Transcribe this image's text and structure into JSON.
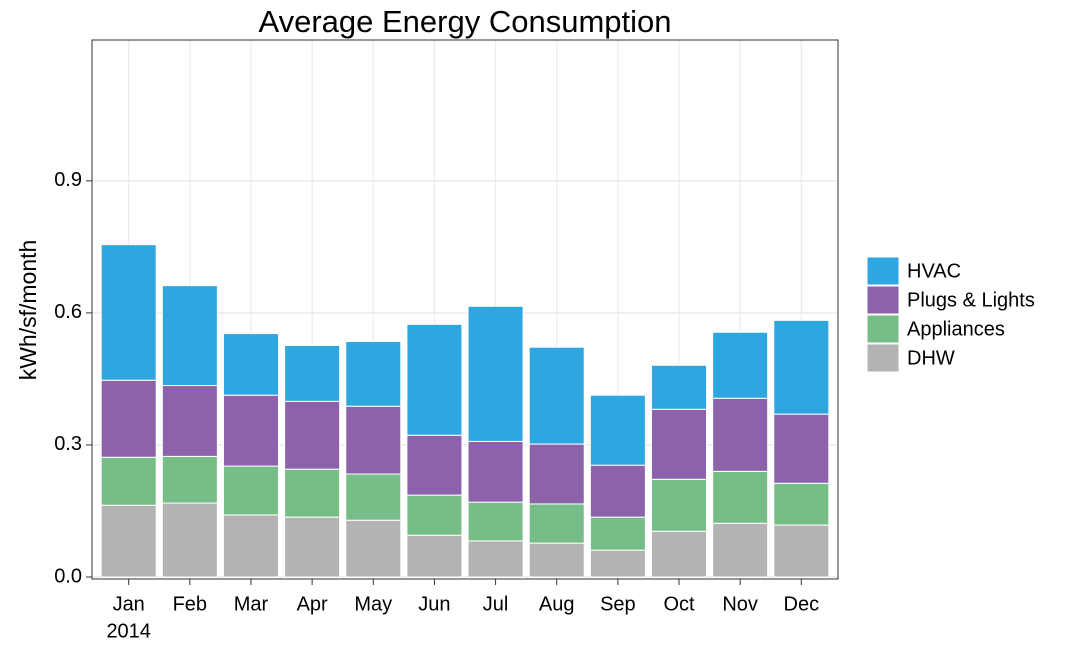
{
  "chart_data": {
    "type": "stacked_bar",
    "title": "Average Energy Consumption",
    "y_label": "kWh/sf/month",
    "categories": [
      "Jan",
      "Feb",
      "Mar",
      "Apr",
      "May",
      "Jun",
      "Jul",
      "Aug",
      "Sep",
      "Oct",
      "Nov",
      "Dec"
    ],
    "x_sublabel": "2014",
    "series": [
      {
        "name": "DHW",
        "color": "#b3b3b3",
        "values": [
          0.163,
          0.168,
          0.141,
          0.136,
          0.129,
          0.095,
          0.082,
          0.077,
          0.061,
          0.104,
          0.122,
          0.118
        ]
      },
      {
        "name": "Appliances",
        "color": "#77bd87",
        "values": [
          0.109,
          0.106,
          0.111,
          0.109,
          0.105,
          0.091,
          0.088,
          0.089,
          0.075,
          0.118,
          0.118,
          0.095
        ]
      },
      {
        "name": "Plugs & Lights",
        "color": "#8c62aa",
        "values": [
          0.175,
          0.161,
          0.161,
          0.154,
          0.154,
          0.136,
          0.138,
          0.136,
          0.118,
          0.159,
          0.166,
          0.157
        ]
      },
      {
        "name": "HVAC",
        "color": "#2ea7e0",
        "values": [
          0.308,
          0.227,
          0.14,
          0.127,
          0.147,
          0.252,
          0.307,
          0.22,
          0.159,
          0.1,
          0.15,
          0.213
        ]
      }
    ],
    "ylim": [
      0,
      1.22
    ],
    "yticks": [
      {
        "value": 0,
        "label": "0.0"
      },
      {
        "value": 0.3,
        "label": "0.3"
      },
      {
        "value": 0.6,
        "label": "0.6"
      },
      {
        "value": 0.9,
        "label": "0.9"
      }
    ],
    "grid": true,
    "legend": "right"
  }
}
